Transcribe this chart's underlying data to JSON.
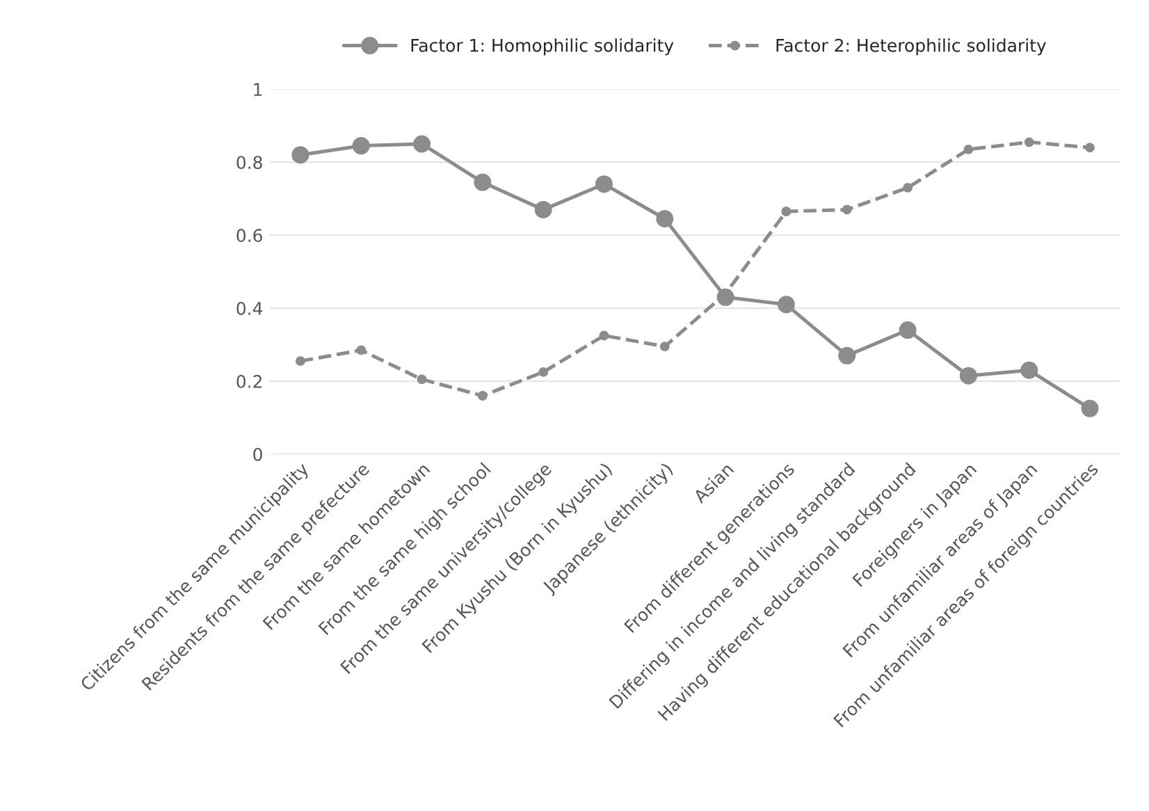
{
  "chart_data": {
    "type": "line",
    "categories": [
      "Citizens from the same municipality",
      "Residents from the same prefecture",
      "From the same hometown",
      "From the same high school",
      "From the same university/college",
      "From Kyushu (Born in Kyushu)",
      "Japanese (ethnicity)",
      "Asian",
      "From different generations",
      "Differing in income and living standard",
      "Having different educational background",
      "Foreigners in Japan",
      "From unfamiliar areas of Japan",
      "From unfamiliar areas of foreign countries"
    ],
    "series": [
      {
        "name": "Factor 1: Homophilic solidarity",
        "color": "#8c8c8c",
        "line_style": "solid",
        "values": [
          0.82,
          0.845,
          0.85,
          0.745,
          0.67,
          0.74,
          0.645,
          0.43,
          0.41,
          0.27,
          0.34,
          0.215,
          0.23,
          0.125
        ]
      },
      {
        "name": "Factor 2: Heterophilic solidarity",
        "color": "#8c8c8c",
        "line_style": "dashed",
        "values": [
          0.255,
          0.285,
          0.205,
          0.16,
          0.225,
          0.325,
          0.295,
          0.44,
          0.665,
          0.67,
          0.73,
          0.835,
          0.855,
          0.84
        ]
      }
    ],
    "ylim": [
      0,
      1
    ],
    "yticks": [
      {
        "value": 0,
        "label": "0"
      },
      0.2,
      0.4,
      0.6,
      0.8,
      {
        "value": 1,
        "label": "1"
      }
    ],
    "grid": "y",
    "legend": "top",
    "marker": "circle"
  }
}
